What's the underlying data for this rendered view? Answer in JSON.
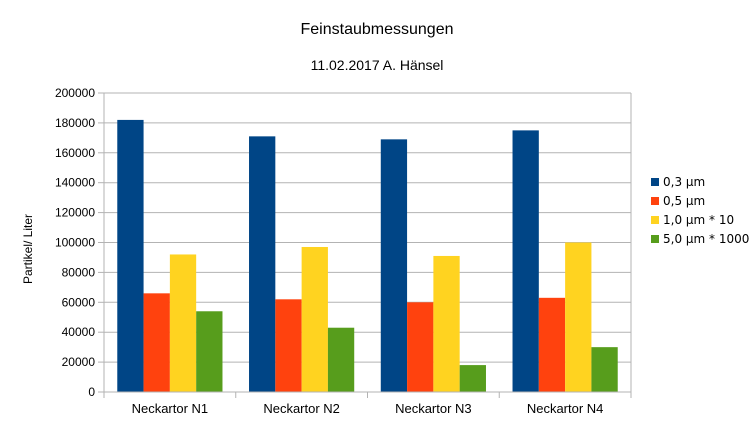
{
  "chart_data": {
    "type": "bar",
    "title": "Feinstaubmessungen",
    "subtitle": "11.02.2017 A. Hänsel",
    "xlabel": "",
    "ylabel": "Partikel/ Liter",
    "ylim": [
      0,
      200000
    ],
    "yticks": [
      0,
      20000,
      40000,
      60000,
      80000,
      100000,
      120000,
      140000,
      160000,
      180000,
      200000
    ],
    "ytick_labels": [
      "0",
      "20000",
      "40000",
      "60000",
      "80000",
      "100000",
      "120000",
      "140000",
      "160000",
      "180000",
      "200000"
    ],
    "grid": true,
    "legend_position": "right",
    "categories": [
      "Neckartor N1",
      "Neckartor N2",
      "Neckartor N3",
      "Neckartor N4"
    ],
    "series": [
      {
        "name": "0,3 µm",
        "color": "#004586",
        "values": [
          182000,
          171000,
          169000,
          175000
        ]
      },
      {
        "name": "0,5 µm",
        "color": "#ff420e",
        "values": [
          66000,
          62000,
          60000,
          63000
        ]
      },
      {
        "name": "1,0 µm * 10",
        "color": "#ffd320",
        "values": [
          92000,
          97000,
          91000,
          100000
        ]
      },
      {
        "name": "5,0 µm * 1000",
        "color": "#579d1c",
        "values": [
          54000,
          43000,
          18000,
          30000
        ]
      }
    ]
  }
}
